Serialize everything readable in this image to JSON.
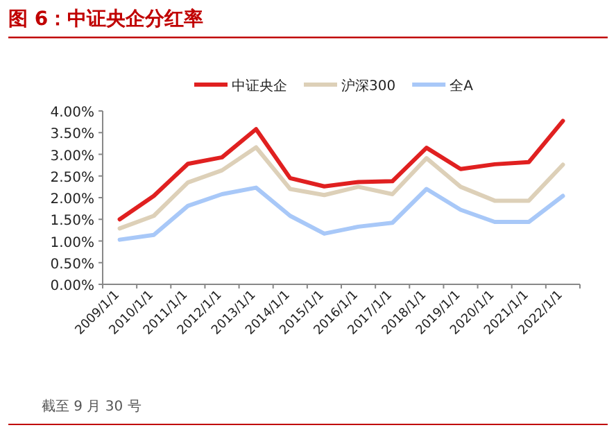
{
  "chart_data": {
    "type": "line",
    "title": "图 6：中证央企分红率",
    "categories": [
      "2009/1/1",
      "2010/1/1",
      "2011/1/1",
      "2012/1/1",
      "2013/1/1",
      "2014/1/1",
      "2015/1/1",
      "2016/1/1",
      "2017/1/1",
      "2018/1/1",
      "2019/1/1",
      "2020/1/1",
      "2021/1/1",
      "2022/1/1"
    ],
    "series": [
      {
        "name": "中证央企",
        "color": "#e02020",
        "values": [
          1.5,
          2.04,
          2.78,
          2.93,
          3.58,
          2.45,
          2.26,
          2.36,
          2.38,
          3.15,
          2.66,
          2.77,
          2.82,
          3.77
        ]
      },
      {
        "name": "沪深300",
        "color": "#ddd0b8",
        "values": [
          1.29,
          1.58,
          2.35,
          2.63,
          3.16,
          2.2,
          2.06,
          2.25,
          2.08,
          2.91,
          2.25,
          1.93,
          1.93,
          2.76
        ]
      },
      {
        "name": "全A",
        "color": "#a8c8f8",
        "values": [
          1.03,
          1.14,
          1.81,
          2.08,
          2.23,
          1.58,
          1.17,
          1.33,
          1.42,
          2.2,
          1.72,
          1.44,
          1.44,
          2.04
        ]
      }
    ],
    "ylim": [
      0,
      4
    ],
    "yticks": [
      {
        "value": 0,
        "label": "0.00%"
      },
      {
        "value": 0.5,
        "label": "0.50%"
      },
      {
        "value": 1,
        "label": "1.00%"
      },
      {
        "value": 1.5,
        "label": "1.50%"
      },
      {
        "value": 2,
        "label": "2.00%"
      },
      {
        "value": 2.5,
        "label": "2.50%"
      },
      {
        "value": 3,
        "label": "3.00%"
      },
      {
        "value": 3.5,
        "label": "3.50%"
      },
      {
        "value": 4,
        "label": "4.00%"
      }
    ],
    "grid": false,
    "legend": "top",
    "marker": "none",
    "line_style": "solid",
    "annotations": [
      "截至 9 月 30 号"
    ]
  }
}
